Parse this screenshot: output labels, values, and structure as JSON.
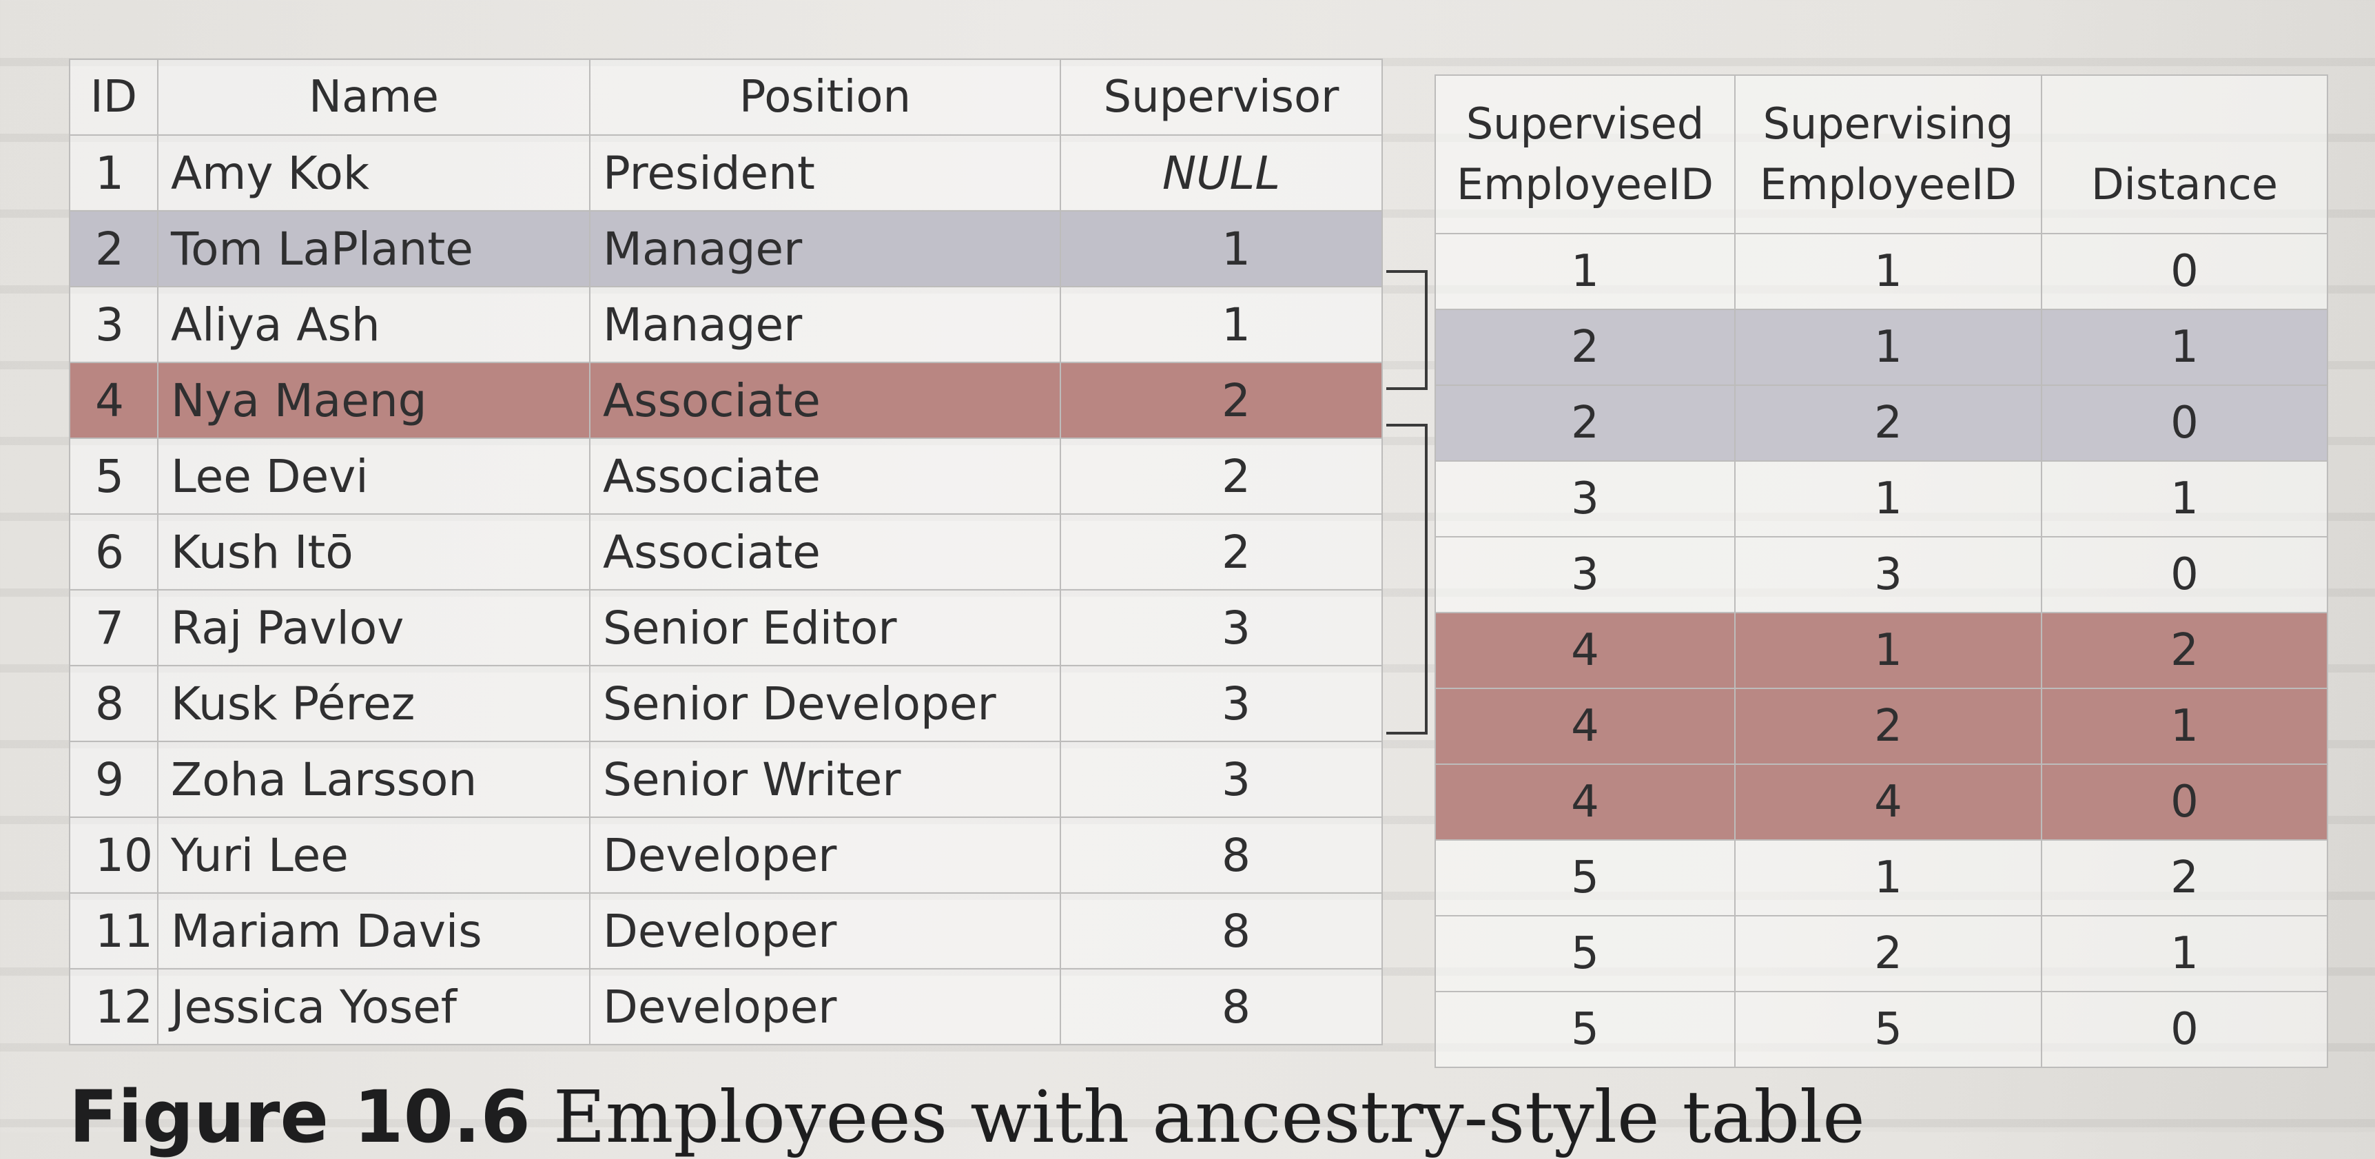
{
  "employees_table": {
    "headers": [
      "ID",
      "Name",
      "Position",
      "Supervisor"
    ],
    "rows": [
      {
        "id": "1",
        "name": "Amy Kok",
        "position": "President",
        "supervisor": "NULL",
        "highlight": "none"
      },
      {
        "id": "2",
        "name": "Tom LaPlante",
        "position": "Manager",
        "supervisor": "1",
        "highlight": "gray"
      },
      {
        "id": "3",
        "name": "Aliya Ash",
        "position": "Manager",
        "supervisor": "1",
        "highlight": "none"
      },
      {
        "id": "4",
        "name": "Nya Maeng",
        "position": "Associate",
        "supervisor": "2",
        "highlight": "red"
      },
      {
        "id": "5",
        "name": "Lee Devi",
        "position": "Associate",
        "supervisor": "2",
        "highlight": "none"
      },
      {
        "id": "6",
        "name": "Kush Itō",
        "position": "Associate",
        "supervisor": "2",
        "highlight": "none"
      },
      {
        "id": "7",
        "name": "Raj Pavlov",
        "position": "Senior Editor",
        "supervisor": "3",
        "highlight": "none"
      },
      {
        "id": "8",
        "name": "Kusk Pérez",
        "position": "Senior Developer",
        "supervisor": "3",
        "highlight": "none"
      },
      {
        "id": "9",
        "name": "Zoha Larsson",
        "position": "Senior Writer",
        "supervisor": "3",
        "highlight": "none"
      },
      {
        "id": "10",
        "name": "Yuri Lee",
        "position": "Developer",
        "supervisor": "8",
        "highlight": "none"
      },
      {
        "id": "11",
        "name": "Mariam Davis",
        "position": "Developer",
        "supervisor": "8",
        "highlight": "none"
      },
      {
        "id": "12",
        "name": "Jessica Yosef",
        "position": "Developer",
        "supervisor": "8",
        "highlight": "none"
      }
    ]
  },
  "ancestry_table": {
    "headers": [
      {
        "line1": "Supervised",
        "line2": "EmployeeID"
      },
      {
        "line1": "Supervising",
        "line2": "EmployeeID"
      },
      {
        "line1": "",
        "line2": "Distance"
      }
    ],
    "rows": [
      {
        "supervised": "1",
        "supervising": "1",
        "distance": "0",
        "highlight": "none"
      },
      {
        "supervised": "2",
        "supervising": "1",
        "distance": "1",
        "highlight": "gray"
      },
      {
        "supervised": "2",
        "supervising": "2",
        "distance": "0",
        "highlight": "gray"
      },
      {
        "supervised": "3",
        "supervising": "1",
        "distance": "1",
        "highlight": "none"
      },
      {
        "supervised": "3",
        "supervising": "3",
        "distance": "0",
        "highlight": "none"
      },
      {
        "supervised": "4",
        "supervising": "1",
        "distance": "2",
        "highlight": "red"
      },
      {
        "supervised": "4",
        "supervising": "2",
        "distance": "1",
        "highlight": "red"
      },
      {
        "supervised": "4",
        "supervising": "4",
        "distance": "0",
        "highlight": "red"
      },
      {
        "supervised": "5",
        "supervising": "1",
        "distance": "2",
        "highlight": "none"
      },
      {
        "supervised": "5",
        "supervising": "2",
        "distance": "1",
        "highlight": "none"
      },
      {
        "supervised": "5",
        "supervising": "5",
        "distance": "0",
        "highlight": "none"
      }
    ]
  },
  "caption": {
    "label": "Figure 10.6",
    "text": "Employees with ancestry-style table"
  },
  "colors": {
    "highlight_gray": "#c1c0c9",
    "highlight_red": "#b98682",
    "grid": "#bdbcbb",
    "text": "#2f2f30"
  }
}
